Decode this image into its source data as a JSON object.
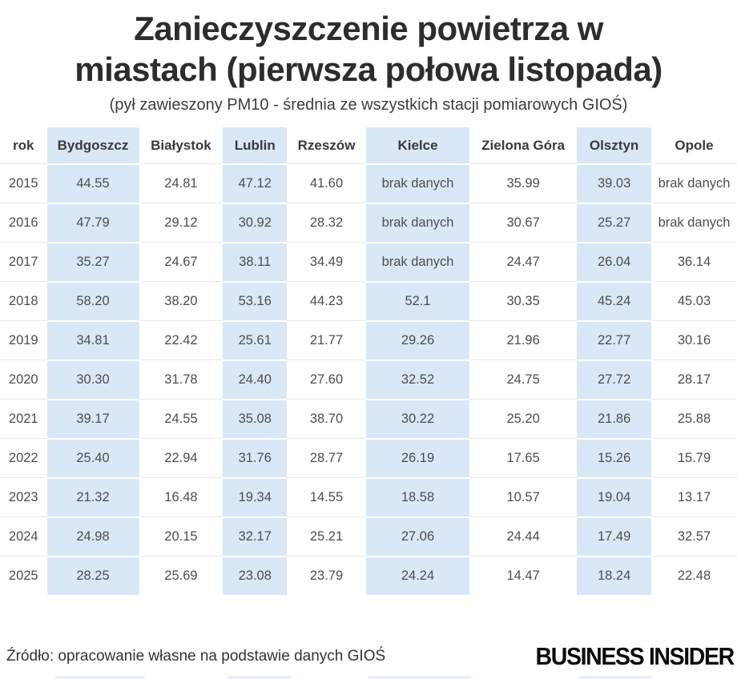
{
  "title_line1": "Zanieczyszczenie powietrza w",
  "title_line2": "miastach (pierwsza połowa listopada)",
  "subtitle": "(pył zawieszony PM10 - średnia ze wszystkich stacji pomiarowych GIOŚ)",
  "source": "Źródło: opracowanie własne na podstawie danych GIOŚ",
  "brand": "BUSINESS INSIDER",
  "colors": {
    "highlight": "#d8e8f7",
    "row_separator": "#e8e8e8",
    "title_text": "#2d2d2d",
    "body_text": "#4d4d4d",
    "brand_text": "#0b0b0b"
  },
  "chart_data": {
    "type": "table",
    "title": "Zanieczyszczenie powietrza w miastach (pierwsza połowa listopada)",
    "subtitle": "(pył zawieszony PM10 - średnia ze wszystkich stacji pomiarowych GIOŚ)",
    "columns": [
      "rok",
      "Bydgoszcz",
      "Białystok",
      "Lublin",
      "Rzeszów",
      "Kielce",
      "Zielona Góra",
      "Olsztyn",
      "Opole"
    ],
    "highlighted_columns": [
      "Bydgoszcz",
      "Lublin",
      "Kielce",
      "Olsztyn"
    ],
    "no_data_label": "brak danych",
    "rows": [
      [
        "2015",
        "44.55",
        "24.81",
        "47.12",
        "41.60",
        "brak danych",
        "35.99",
        "39.03",
        "brak danych"
      ],
      [
        "2016",
        "47.79",
        "29.12",
        "30.92",
        "28.32",
        "brak danych",
        "30.67",
        "25.27",
        "brak danych"
      ],
      [
        "2017",
        "35.27",
        "24.67",
        "38.11",
        "34.49",
        "brak danych",
        "24.47",
        "26.04",
        "36.14"
      ],
      [
        "2018",
        "58.20",
        "38.20",
        "53.16",
        "44.23",
        "52.1",
        "30.35",
        "45.24",
        "45.03"
      ],
      [
        "2019",
        "34.81",
        "22.42",
        "25.61",
        "21.77",
        "29.26",
        "21.96",
        "22.77",
        "30.16"
      ],
      [
        "2020",
        "30.30",
        "31.78",
        "24.40",
        "27.60",
        "32.52",
        "24.75",
        "27.72",
        "28.17"
      ],
      [
        "2021",
        "39.17",
        "24.55",
        "35.08",
        "38.70",
        "30.22",
        "25.20",
        "21.86",
        "25.88"
      ],
      [
        "2022",
        "25.40",
        "22.94",
        "31.76",
        "28.77",
        "26.19",
        "17.65",
        "15.26",
        "15.79"
      ],
      [
        "2023",
        "21.32",
        "16.48",
        "19.34",
        "14.55",
        "18.58",
        "10.57",
        "19.04",
        "13.17"
      ],
      [
        "2024",
        "24.98",
        "20.15",
        "32.17",
        "25.21",
        "27.06",
        "24.44",
        "17.49",
        "32.57"
      ],
      [
        "2025",
        "28.25",
        "25.69",
        "23.08",
        "23.79",
        "24.24",
        "14.47",
        "18.24",
        "22.48"
      ]
    ]
  }
}
